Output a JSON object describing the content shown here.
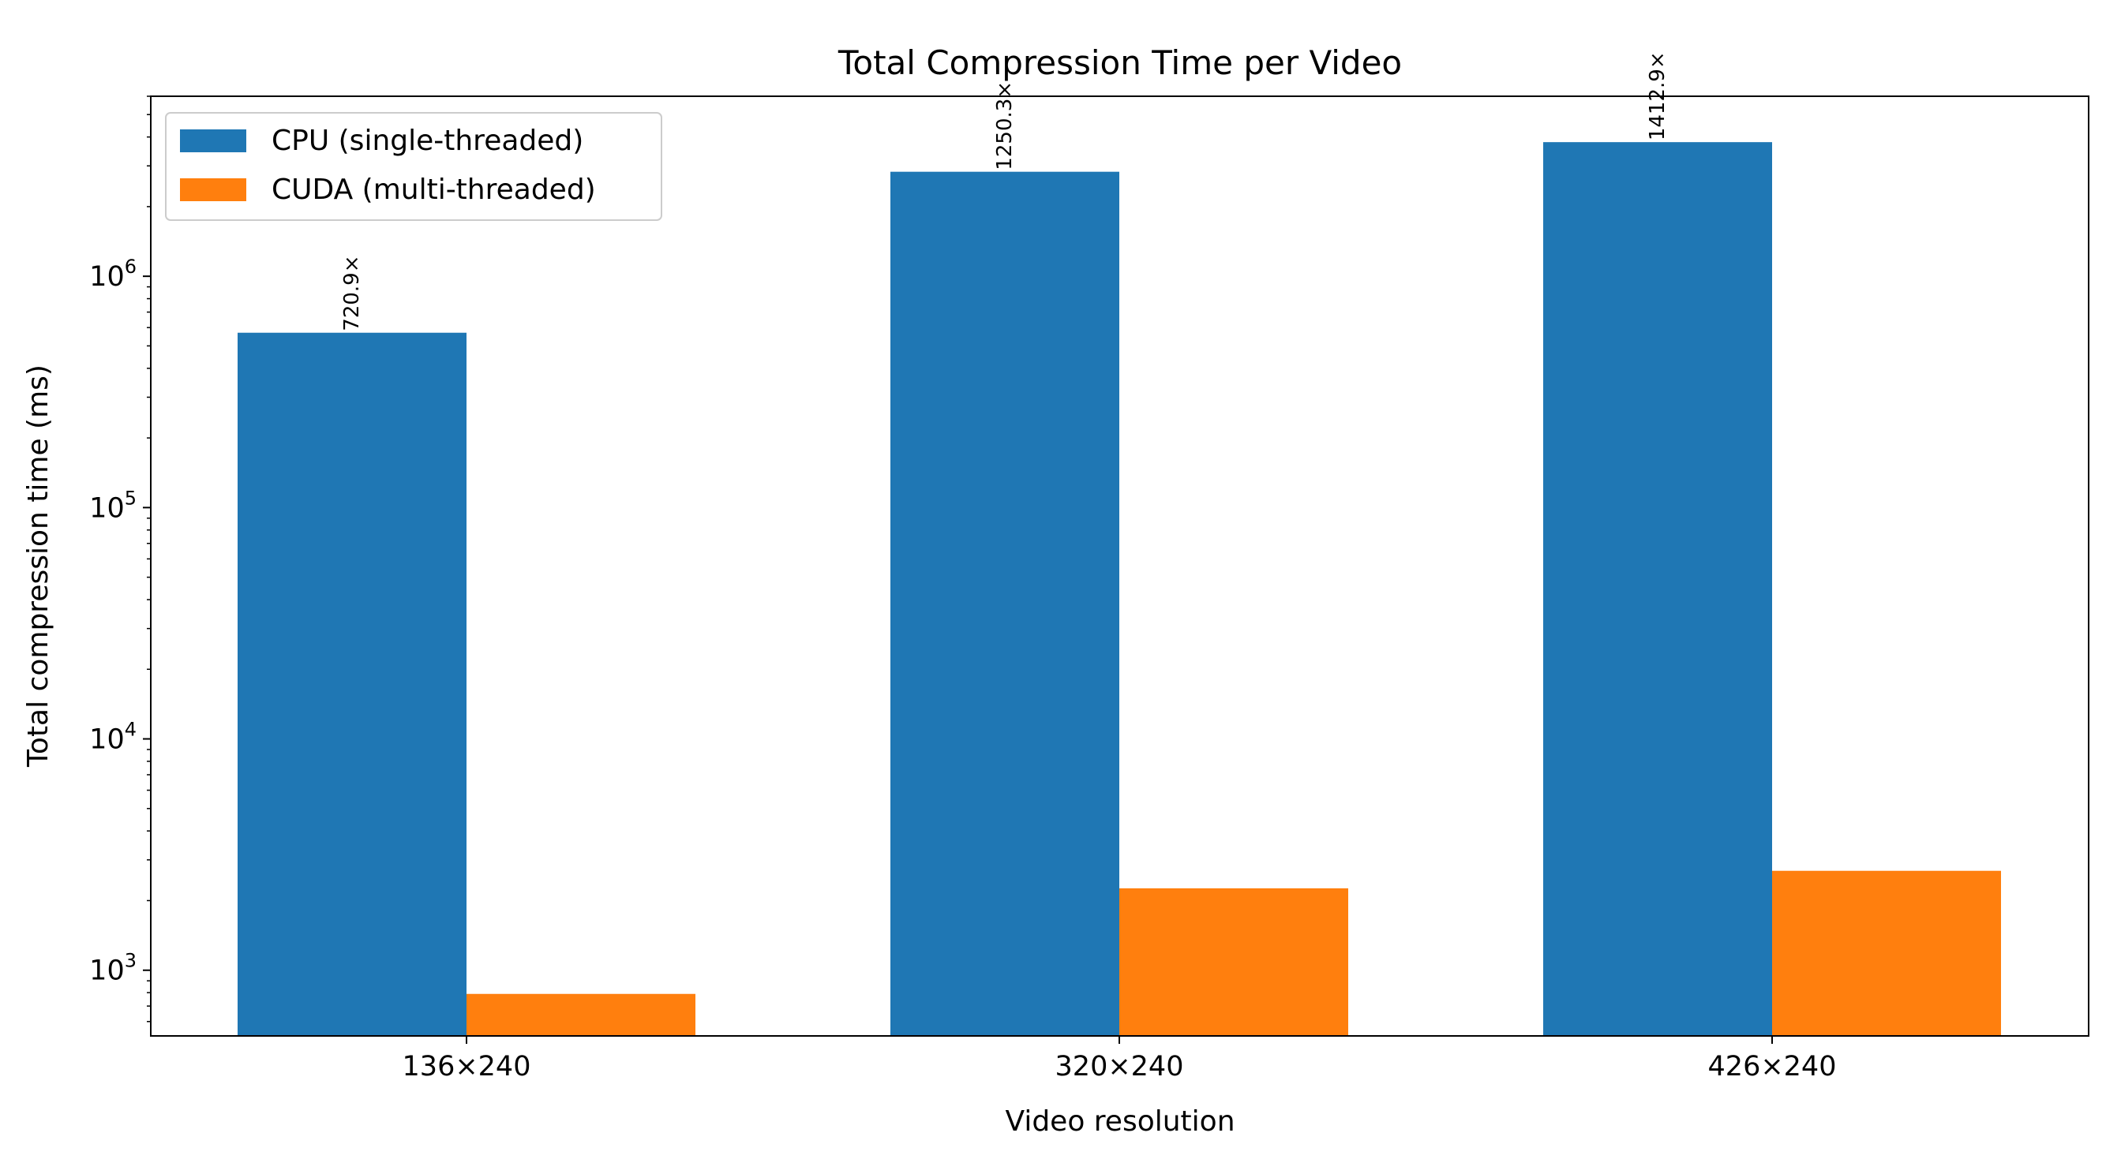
{
  "chart_data": {
    "type": "bar",
    "title": "Total Compression Time per Video",
    "xlabel": "Video resolution",
    "ylabel": "Total compression time (ms)",
    "yscale": "log",
    "ylim": [
      520,
      6000000
    ],
    "categories": [
      "136×240",
      "320×240",
      "426×240"
    ],
    "series": [
      {
        "name": "CPU (single-threaded)",
        "color": "#1f77b4",
        "values": [
          570000,
          2830000,
          3800000
        ]
      },
      {
        "name": "CUDA (multi-threaded)",
        "color": "#ff7f0e",
        "values": [
          790,
          2260,
          2690
        ]
      }
    ],
    "bar_labels": [
      "720.9×",
      "1250.3×",
      "1412.9×"
    ],
    "y_ticks": [
      {
        "base": "10",
        "exp": "3",
        "value": 1000
      },
      {
        "base": "10",
        "exp": "4",
        "value": 10000
      },
      {
        "base": "10",
        "exp": "5",
        "value": 100000
      },
      {
        "base": "10",
        "exp": "6",
        "value": 1000000
      }
    ],
    "legend_position": "upper-left",
    "grid": false
  }
}
